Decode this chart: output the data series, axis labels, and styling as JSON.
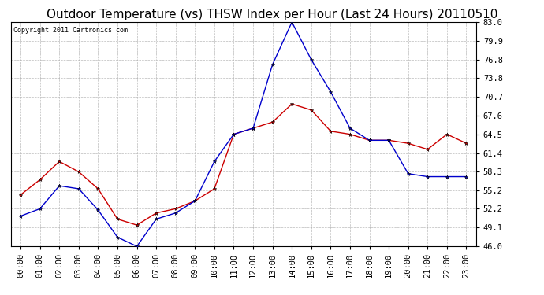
{
  "title": "Outdoor Temperature (vs) THSW Index per Hour (Last 24 Hours) 20110510",
  "copyright": "Copyright 2011 Cartronics.com",
  "x_labels": [
    "00:00",
    "01:00",
    "02:00",
    "03:00",
    "04:00",
    "05:00",
    "06:00",
    "07:00",
    "08:00",
    "09:00",
    "10:00",
    "11:00",
    "12:00",
    "13:00",
    "14:00",
    "15:00",
    "16:00",
    "17:00",
    "18:00",
    "19:00",
    "20:00",
    "21:00",
    "22:00",
    "23:00"
  ],
  "y_min": 46.0,
  "y_max": 83.0,
  "y_ticks": [
    46.0,
    49.1,
    52.2,
    55.2,
    58.3,
    61.4,
    64.5,
    67.6,
    70.7,
    73.8,
    76.8,
    79.9,
    83.0
  ],
  "temp_data": [
    54.5,
    57.0,
    60.0,
    58.3,
    55.5,
    50.5,
    49.5,
    51.5,
    52.2,
    53.5,
    55.5,
    64.5,
    65.5,
    66.5,
    69.5,
    68.5,
    65.0,
    64.5,
    63.5,
    63.5,
    63.0,
    62.0,
    64.5,
    63.0
  ],
  "thsw_data": [
    51.0,
    52.2,
    56.0,
    55.5,
    52.0,
    47.5,
    46.0,
    50.5,
    51.5,
    53.5,
    60.0,
    64.5,
    65.5,
    76.0,
    83.0,
    76.8,
    71.5,
    65.5,
    63.5,
    63.5,
    58.0,
    57.5,
    57.5,
    57.5
  ],
  "temp_color": "#cc0000",
  "thsw_color": "#0000cc",
  "bg_color": "#ffffff",
  "grid_color": "#aaaaaa",
  "title_fontsize": 11,
  "copyright_fontsize": 6,
  "tick_fontsize": 7.5
}
